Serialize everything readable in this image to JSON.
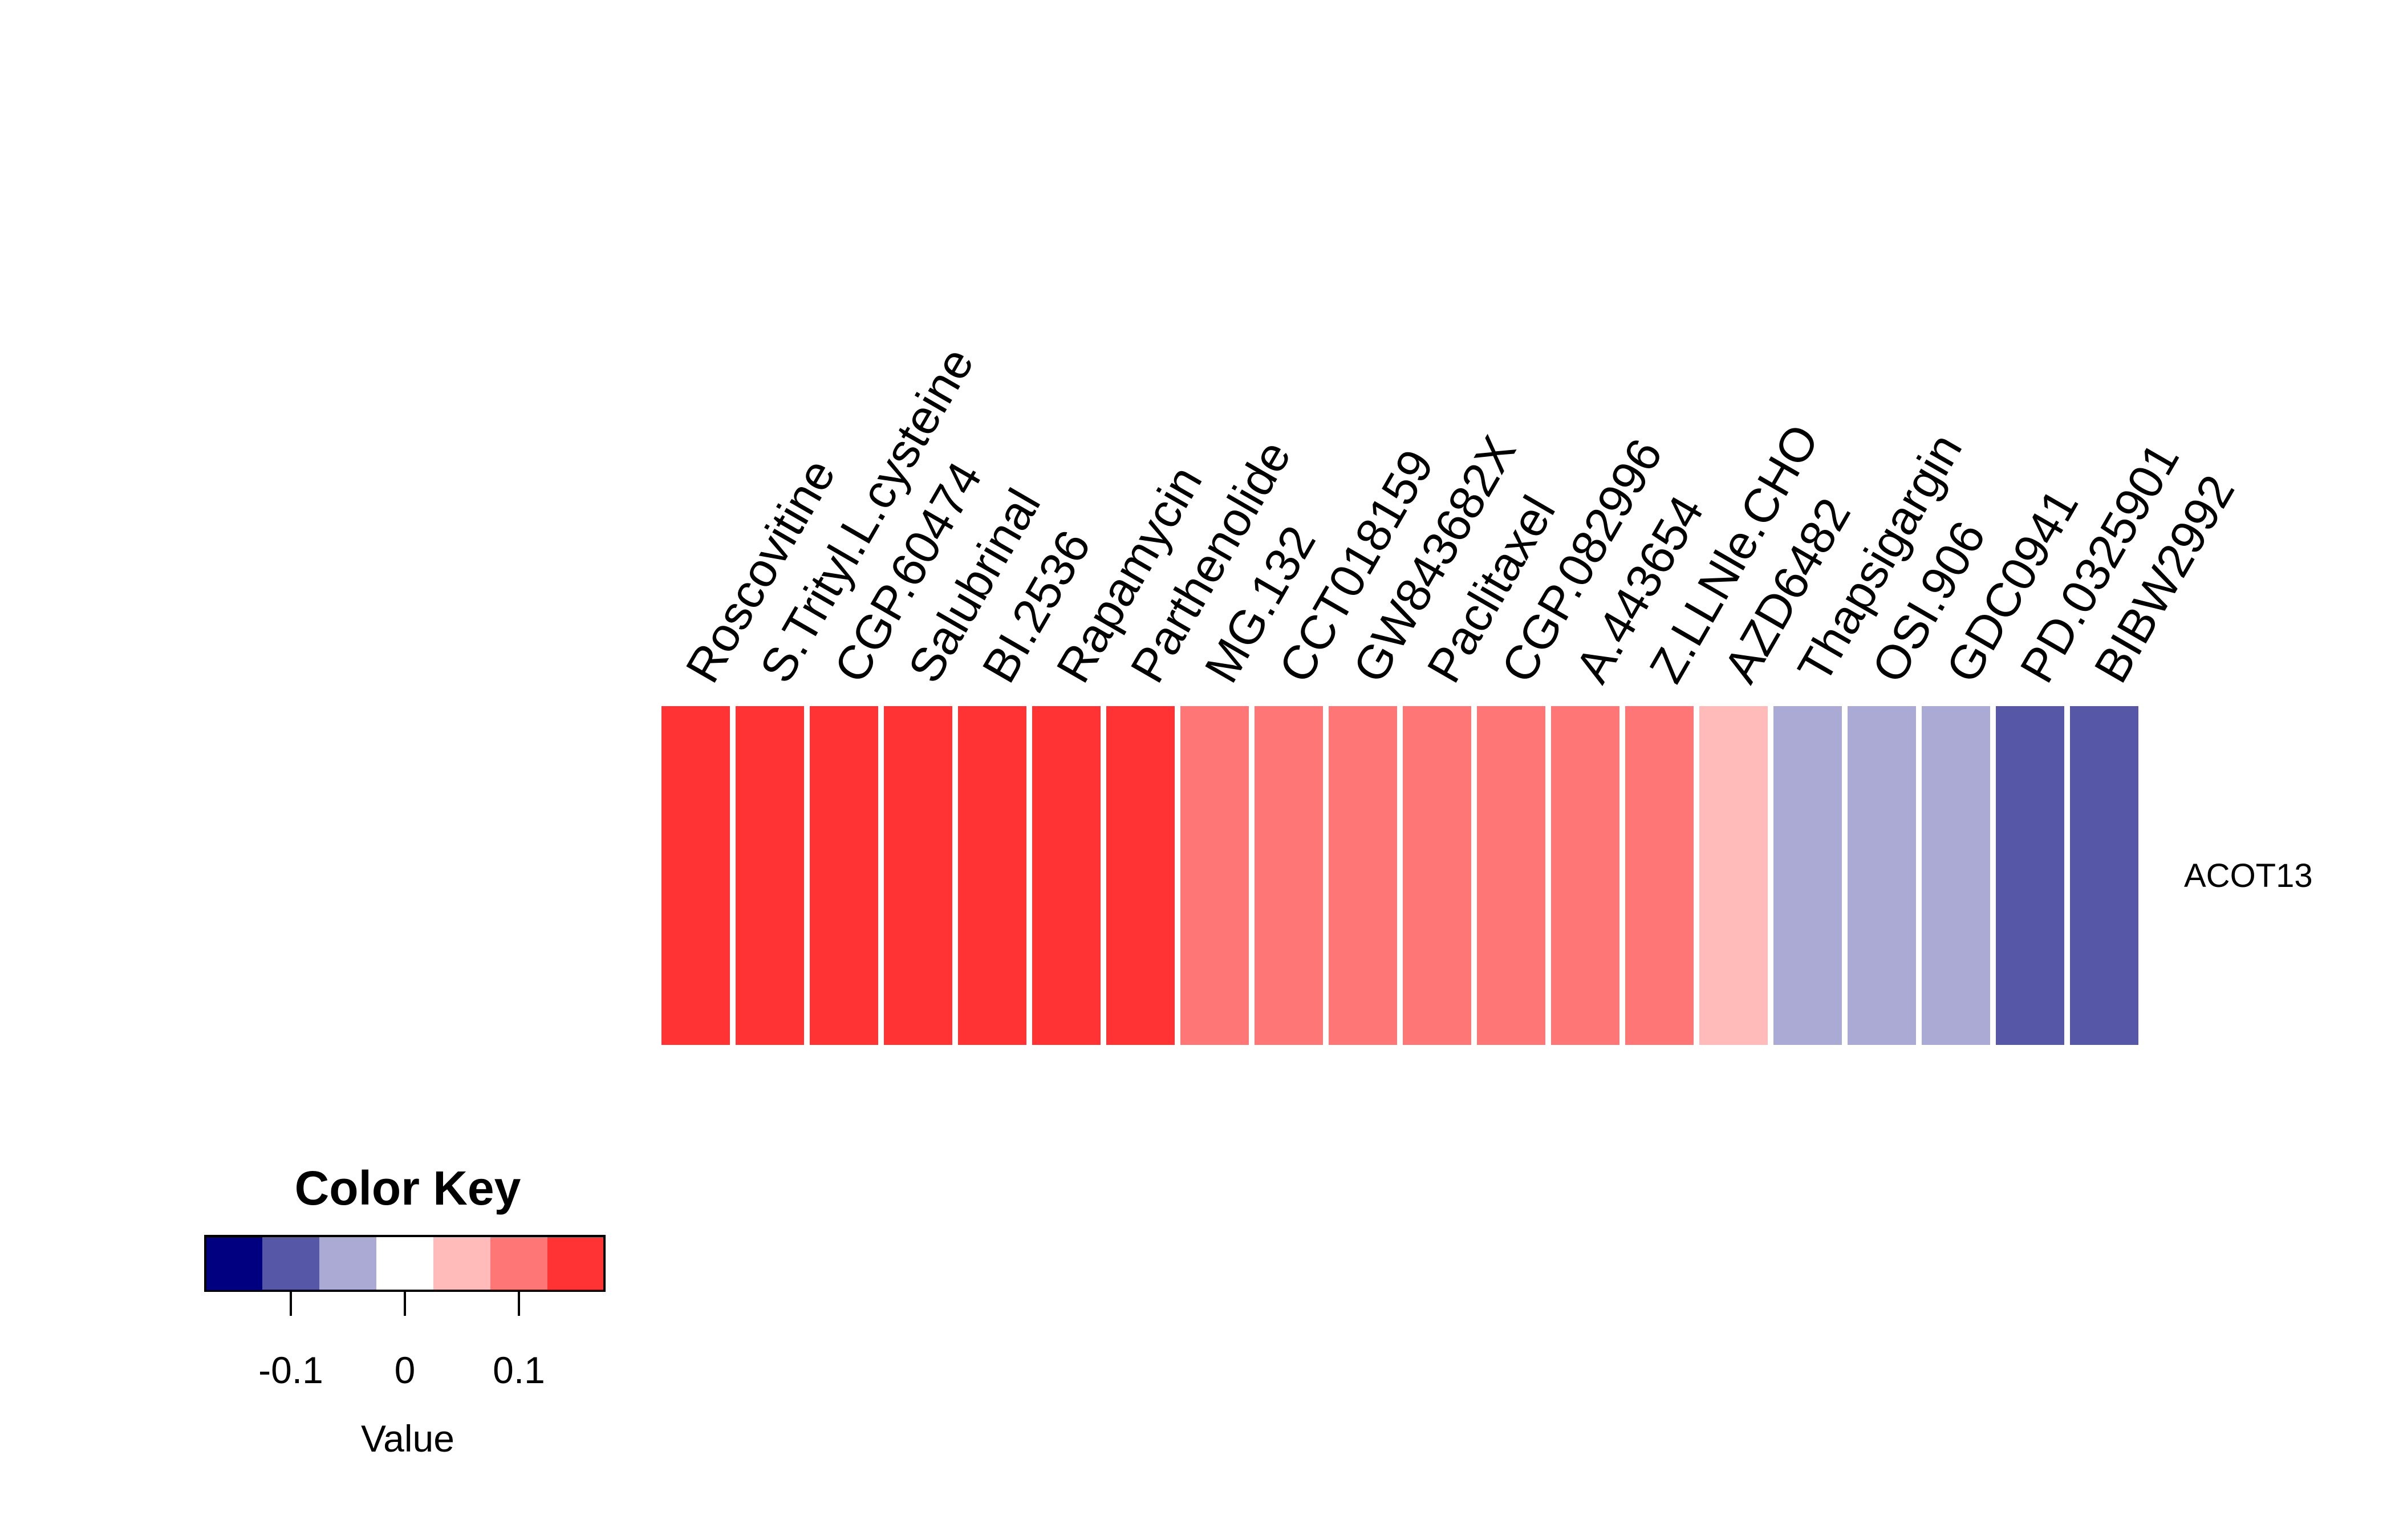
{
  "chart_data": {
    "type": "heatmap",
    "rows": [
      "ACOT13"
    ],
    "columns": [
      "Roscovitine",
      "S.Trityl.L.cysteine",
      "CGP.60474",
      "Salubrinal",
      "BI.2536",
      "Rapamycin",
      "Parthenolide",
      "MG.132",
      "CCT018159",
      "GW843682X",
      "Paclitaxel",
      "CGP.082996",
      "A.443654",
      "Z.LLNle.CHO",
      "AZD6482",
      "Thapsigargin",
      "OSI.906",
      "GDC0941",
      "PD.0325901",
      "BIBW2992"
    ],
    "values": [
      [
        0.15,
        0.15,
        0.15,
        0.15,
        0.15,
        0.15,
        0.15,
        0.1,
        0.1,
        0.1,
        0.1,
        0.1,
        0.1,
        0.1,
        0.05,
        -0.05,
        -0.05,
        -0.05,
        -0.1,
        -0.1
      ]
    ],
    "color_key": {
      "title": "Color Key",
      "xlabel": "Value",
      "breaks": [
        -0.175,
        -0.125,
        -0.075,
        -0.025,
        0.025,
        0.075,
        0.125,
        0.175
      ],
      "colors": [
        "#000080",
        "#5757a8",
        "#abaad4",
        "#ffffff",
        "#ffbaba",
        "#ff7676",
        "#ff3333"
      ],
      "ticks": [
        -0.1,
        0,
        0.1
      ],
      "tick_labels": [
        "-0.1",
        "0",
        "0.1"
      ]
    }
  }
}
